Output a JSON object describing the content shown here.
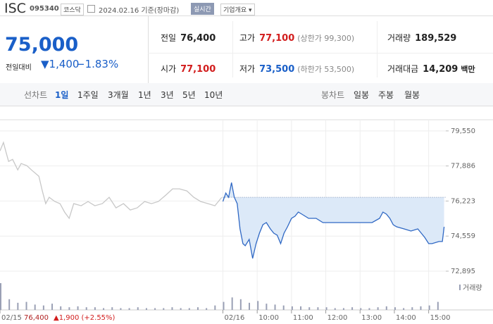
{
  "header": {
    "name": "ISC",
    "code": "095340",
    "market": "코스닥",
    "date": "2024.02.16 기준(장마감)",
    "realtime": "실시간",
    "company_info": "기업개요"
  },
  "price": {
    "current": "75,000",
    "change_label": "전일대비",
    "change": "▼1,400",
    "change_rate": "−1.83%"
  },
  "quote": [
    [
      {
        "label": "전일",
        "value": "76,400"
      },
      {
        "label": "고가",
        "value": "77,100",
        "note": "(상한가 99,300)",
        "color": "#d21d1d"
      },
      {
        "label": "거래량",
        "value": "189,529"
      }
    ],
    [
      {
        "label": "시가",
        "value": "77,100",
        "color": "#d21d1d"
      },
      {
        "label": "저가",
        "value": "73,500",
        "note": "(하한가 53,500)",
        "color": "#1a5fc8"
      },
      {
        "label": "거래대금",
        "value": "14,209",
        "note": "백만"
      }
    ]
  ],
  "tabs": {
    "line_label": "선차트",
    "periods": [
      "1일",
      "1주일",
      "3개월",
      "1년",
      "3년",
      "5년",
      "10년"
    ],
    "candle_label": "봉차트",
    "candles": [
      "일봉",
      "주봉",
      "월봉"
    ]
  },
  "chart_data": {
    "type": "line",
    "grid": true,
    "xlim": [
      0,
      780
    ],
    "ylim": [
      72560,
      80080
    ],
    "yticks": [
      {
        "value": 79550,
        "label": "79,550"
      },
      {
        "value": 77886,
        "label": "77,886"
      },
      {
        "value": 76223,
        "label": "76,223"
      },
      {
        "value": 74559,
        "label": "74,559"
      },
      {
        "value": 72895,
        "label": "72,895"
      }
    ],
    "xticks": [
      {
        "value": 0,
        "label": "02/15"
      },
      {
        "value": 390,
        "label": "02/16"
      },
      {
        "value": 450,
        "label": "10:00"
      },
      {
        "value": 510,
        "label": "11:00"
      },
      {
        "value": 570,
        "label": "12:00"
      },
      {
        "value": 630,
        "label": "13:00"
      },
      {
        "value": 690,
        "label": "14:00"
      },
      {
        "value": 750,
        "label": "15:00"
      }
    ],
    "prev_summary": {
      "close": "76,400",
      "change": "▲1,900 (+2.55%)"
    },
    "reference_line": 76400,
    "series": [
      {
        "color": "#c8c8c8",
        "x": [
          0,
          6,
          10,
          15,
          22,
          31,
          37,
          47,
          55,
          68,
          74,
          80,
          86,
          96,
          105,
          113,
          121,
          129,
          142,
          154,
          166,
          179,
          191,
          203,
          216,
          228,
          240,
          253,
          265,
          277,
          290,
          302,
          314,
          327,
          339,
          351,
          364,
          376,
          388
        ],
        "values": [
          78600,
          79000,
          78600,
          78100,
          78200,
          77700,
          78000,
          77900,
          77700,
          77400,
          76700,
          76100,
          76400,
          76200,
          76100,
          75700,
          75400,
          76100,
          76000,
          76200,
          76000,
          76100,
          76400,
          75900,
          76100,
          75800,
          75900,
          76200,
          76100,
          76200,
          76500,
          76800,
          76800,
          76700,
          76400,
          76200,
          76100,
          76000,
          76400
        ]
      },
      {
        "color": "#2f68c4",
        "fill": "#dce9f8",
        "x": [
          390,
          395,
          400,
          405,
          410,
          415,
          420,
          425,
          429,
          436,
          442,
          448,
          454,
          460,
          466,
          473,
          479,
          485,
          491,
          497,
          503,
          510,
          516,
          522,
          528,
          540,
          553,
          565,
          577,
          590,
          602,
          614,
          627,
          639,
          651,
          664,
          670,
          676,
          682,
          688,
          694,
          707,
          719,
          731,
          737,
          743,
          750,
          756,
          768,
          774,
          777
        ],
        "values": [
          76200,
          76600,
          76400,
          77100,
          76400,
          76100,
          74900,
          74200,
          74100,
          74400,
          73500,
          74200,
          74700,
          75100,
          75200,
          74900,
          74700,
          74600,
          74200,
          74700,
          75000,
          75400,
          75500,
          75700,
          75600,
          75400,
          75400,
          75200,
          75200,
          75200,
          75200,
          75200,
          75200,
          75200,
          75200,
          75400,
          75700,
          75600,
          75400,
          75100,
          75000,
          74900,
          74800,
          74900,
          74700,
          74500,
          74200,
          74200,
          74300,
          74300,
          75000
        ]
      }
    ],
    "volume": {
      "name": "거래량",
      "color": "#9aa0b5",
      "x": [
        0,
        15,
        30,
        45,
        60,
        75,
        90,
        105,
        120,
        135,
        150,
        165,
        180,
        195,
        210,
        225,
        240,
        255,
        270,
        285,
        300,
        315,
        330,
        345,
        360,
        375,
        390,
        405,
        420,
        435,
        450,
        465,
        480,
        495,
        510,
        525,
        540,
        555,
        570,
        585,
        600,
        615,
        630,
        645,
        660,
        675,
        690,
        705,
        720,
        735,
        750,
        765
      ],
      "values": [
        30000,
        12000,
        8000,
        9000,
        6000,
        5000,
        7000,
        4000,
        3000,
        4000,
        3000,
        3000,
        2000,
        3000,
        2000,
        2000,
        3000,
        2000,
        2000,
        2000,
        3000,
        2000,
        2000,
        3000,
        2000,
        5000,
        9000,
        14000,
        12000,
        8000,
        10000,
        7000,
        6000,
        5000,
        4000,
        4000,
        3000,
        3000,
        3000,
        2000,
        2000,
        3000,
        2000,
        2000,
        3000,
        4000,
        3000,
        2000,
        3000,
        4000,
        5000,
        9000
      ]
    }
  }
}
